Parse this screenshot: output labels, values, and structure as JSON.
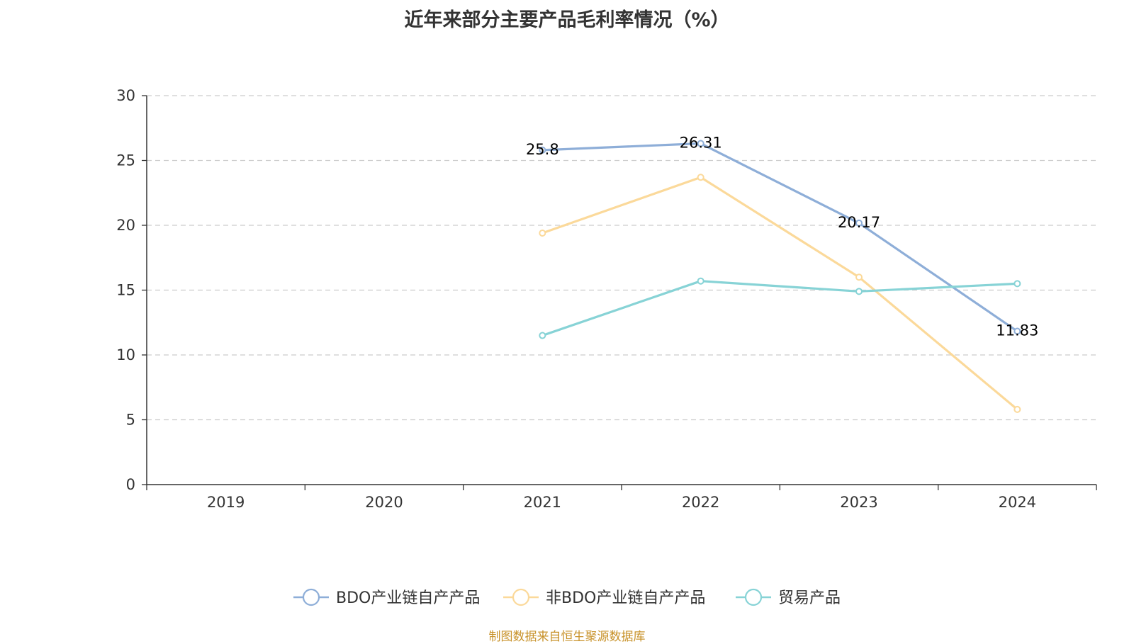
{
  "chart_data": {
    "type": "line",
    "title": "近年来部分主要产品毛利率情况（%）",
    "xlabel": "",
    "ylabel": "",
    "categories": [
      "2019",
      "2020",
      "2021",
      "2022",
      "2023",
      "2024"
    ],
    "ylim": [
      0,
      30
    ],
    "yticks": [
      0,
      5,
      10,
      15,
      20,
      25,
      30
    ],
    "grid": true,
    "legend_position": "bottom",
    "series": [
      {
        "name": "BDO产业链自产产品",
        "color": "#8eaed8",
        "values": [
          null,
          null,
          25.8,
          26.31,
          20.17,
          11.83
        ],
        "show_labels": true
      },
      {
        "name": "非BDO产业链自产产品",
        "color": "#fbd99a",
        "values": [
          null,
          null,
          19.4,
          23.7,
          16.0,
          5.8
        ],
        "show_labels": false
      },
      {
        "name": "贸易产品",
        "color": "#87d3d6",
        "values": [
          null,
          null,
          11.5,
          15.7,
          14.9,
          15.5
        ],
        "show_labels": false
      }
    ]
  },
  "footer": {
    "source": "制图数据来自恒生聚源数据库"
  }
}
